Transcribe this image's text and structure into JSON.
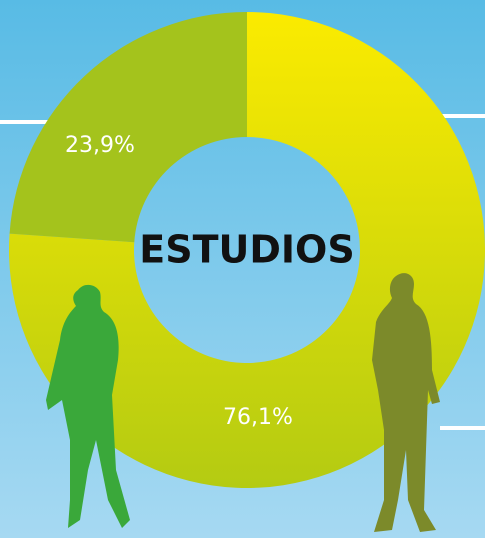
{
  "chart_data": {
    "type": "pie",
    "title": "ESTUDIOS",
    "values": [
      76.1,
      23.9
    ],
    "value_labels": [
      "76,1%",
      "23,9%"
    ],
    "colors": [
      "#f2e400",
      "#a4c31c"
    ]
  }
}
